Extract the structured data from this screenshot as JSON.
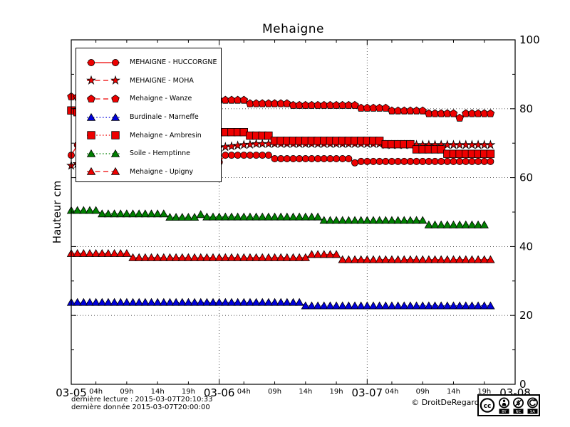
{
  "title": "Mehaigne",
  "ylabel": "Hauteur cm",
  "footer": {
    "last_reading": "dernière lecture : 2015-03-07T20:10:33",
    "last_data": "dernière donnée  2015-03-07T20:00:00",
    "copyright": "© DroitDeRegard.be",
    "cc_logo": "cc",
    "cc_parts": [
      "BY",
      "NC",
      "SA"
    ]
  },
  "chart_data": {
    "type": "line",
    "title": "Mehaigne",
    "xlabel": "",
    "ylabel": "Hauteur cm",
    "ylim": [
      0,
      100
    ],
    "x_unit": "hours since 2015-03-05T00:00",
    "x_range_hours": 72,
    "grid": {
      "y_values": [
        20,
        40,
        60,
        80
      ],
      "x_hours": [
        24,
        48
      ]
    },
    "axes": {
      "x_major": [
        {
          "hour": 0,
          "label": "03-05"
        },
        {
          "hour": 24,
          "label": "03-06"
        },
        {
          "hour": 48,
          "label": "03-07"
        },
        {
          "hour": 72,
          "label": "03-08"
        }
      ],
      "x_minor": [
        {
          "hour": 4,
          "label": "04h"
        },
        {
          "hour": 9,
          "label": "09h"
        },
        {
          "hour": 14,
          "label": "14h"
        },
        {
          "hour": 19,
          "label": "19h"
        },
        {
          "hour": 28,
          "label": "04h"
        },
        {
          "hour": 33,
          "label": "09h"
        },
        {
          "hour": 38,
          "label": "14h"
        },
        {
          "hour": 43,
          "label": "19h"
        },
        {
          "hour": 52,
          "label": "04h"
        },
        {
          "hour": 57,
          "label": "09h"
        },
        {
          "hour": 62,
          "label": "14h"
        },
        {
          "hour": 67,
          "label": "19h"
        }
      ],
      "y_major": [
        {
          "value": 0,
          "label": "0"
        },
        {
          "value": 20,
          "label": "20"
        },
        {
          "value": 40,
          "label": "40"
        },
        {
          "value": 60,
          "label": "60"
        },
        {
          "value": 80,
          "label": "80"
        },
        {
          "value": 100,
          "label": "100"
        }
      ],
      "y_minor": [
        10,
        30,
        50,
        70,
        90
      ]
    },
    "series": [
      {
        "name": "MEHAIGNE - HUCCORGNE",
        "color": "#ee0000",
        "marker": "circle",
        "line": "solid",
        "start_hour": 0,
        "values": [
          66.5,
          69.5,
          69.5,
          69,
          69,
          68.5,
          68.5,
          68,
          68,
          67.5,
          67.5,
          67,
          67,
          66.5,
          66.5,
          66,
          66,
          65.5,
          65.5,
          65,
          65,
          64.8,
          64.6,
          64.5,
          64.5,
          66.5,
          66.5,
          66.5,
          66.5,
          66.5,
          66.5,
          66.5,
          66.5,
          65.5,
          65.5,
          65.5,
          65.5,
          65.5,
          65.5,
          65.5,
          65.5,
          65.5,
          65.5,
          65.5,
          65.5,
          65.5,
          64.3,
          64.7,
          64.7,
          64.7,
          64.7,
          64.7,
          64.7,
          64.7,
          64.7,
          64.7,
          64.7,
          64.7,
          64.7,
          64.7,
          64.7,
          64.7,
          64.7,
          64.7,
          64.7,
          64.7,
          64.7,
          64.7,
          64.7
        ]
      },
      {
        "name": "MEHAIGNE - MOHA",
        "color": "#ee0000",
        "marker": "star",
        "line": "dashed",
        "start_hour": 0,
        "values": [
          63.5,
          64,
          64.4,
          64.8,
          65.2,
          65.5,
          65.8,
          66.1,
          66.4,
          66.6,
          66.8,
          67,
          67.2,
          67.4,
          67.5,
          67.7,
          67.8,
          67.9,
          68,
          68.1,
          68.2,
          68.3,
          68.4,
          68.5,
          68.7,
          68.9,
          69.1,
          69.3,
          69.5,
          69.6,
          69.8,
          69.8,
          69.8,
          69.8,
          69.8,
          69.8,
          69.8,
          69.8,
          69.8,
          69.8,
          69.8,
          69.8,
          69.8,
          69.8,
          69.8,
          69.8,
          69.8,
          69.8,
          69.8,
          69.8,
          69.8,
          69.5,
          69.5,
          69.5,
          69.5,
          69.5,
          69.5,
          69.5,
          69.5,
          69.5,
          69.5,
          69.5,
          69.5,
          69.5,
          69.5,
          69.5,
          69.5,
          69.5,
          69.5
        ]
      },
      {
        "name": "Mehaigne - Wanze",
        "color": "#ee0000",
        "marker": "pentagon",
        "line": "dashed",
        "start_hour": 0,
        "values": [
          83.5,
          83.4,
          83.3,
          83.3,
          83.2,
          83.2,
          83.1,
          83.1,
          83,
          83,
          83,
          83,
          83,
          83,
          83,
          83,
          83,
          83,
          83,
          83,
          83,
          83,
          83,
          83,
          82.5,
          82.5,
          82.5,
          82.5,
          82.5,
          81.5,
          81.5,
          81.5,
          81.5,
          81.5,
          81.5,
          81.5,
          81,
          81,
          81,
          81,
          81,
          81,
          81,
          81,
          81,
          81,
          81,
          80.2,
          80.2,
          80.2,
          80.2,
          80.2,
          79.4,
          79.4,
          79.4,
          79.4,
          79.4,
          79.4,
          78.6,
          78.6,
          78.6,
          78.6,
          78.6,
          77.3,
          78.6,
          78.6,
          78.6,
          78.6,
          78.6
        ]
      },
      {
        "name": "Burdinale - Marneffe",
        "color": "#0000dd",
        "marker": "triangle",
        "line": "dotted",
        "start_hour": 0,
        "values": [
          23.8,
          23.8,
          23.8,
          23.8,
          23.8,
          23.8,
          23.8,
          23.8,
          23.8,
          23.8,
          23.8,
          23.8,
          23.8,
          23.8,
          23.8,
          23.8,
          23.8,
          23.8,
          23.8,
          23.8,
          23.8,
          23.8,
          23.8,
          23.8,
          23.8,
          23.8,
          23.8,
          23.8,
          23.8,
          23.8,
          23.8,
          23.8,
          23.8,
          23.8,
          23.8,
          23.8,
          23.8,
          23.8,
          22.8,
          22.8,
          22.8,
          22.8,
          22.8,
          22.8,
          22.8,
          22.8,
          22.8,
          22.8,
          22.8,
          22.8,
          22.8,
          22.8,
          22.8,
          22.8,
          22.8,
          22.8,
          22.8,
          22.8,
          22.8,
          22.8,
          22.8,
          22.8,
          22.8,
          22.8,
          22.8,
          22.8,
          22.8,
          22.8,
          22.8
        ]
      },
      {
        "name": "Mehaigne - Ambresin",
        "color": "#ee0000",
        "marker": "square",
        "line": "dotted",
        "start_hour": 0,
        "values": [
          79.5,
          79,
          78.5,
          78,
          77.5,
          77,
          76.5,
          76,
          75.6,
          75.2,
          75,
          74.8,
          74.6,
          74.4,
          74.2,
          74,
          73.9,
          73.8,
          73.7,
          73.6,
          73.5,
          73.4,
          73.3,
          73.3,
          73.2,
          73.2,
          73.2,
          73.2,
          73.2,
          72.2,
          72.2,
          72.2,
          72.2,
          70.7,
          70.7,
          70.7,
          70.7,
          70.7,
          70.7,
          70.7,
          70.7,
          70.7,
          70.7,
          70.7,
          70.7,
          70.7,
          70.7,
          70.7,
          70.7,
          70.7,
          70.7,
          69.7,
          69.7,
          69.7,
          69.7,
          69.7,
          68.2,
          68.2,
          68.2,
          68.2,
          68.2,
          66.9,
          66.9,
          66.9,
          66.9,
          66.9,
          66.9,
          66.9,
          66.9
        ]
      },
      {
        "name": "Soile - Hemptinne",
        "color": "#008000",
        "marker": "triangle",
        "line": "dotted",
        "start_hour": 0,
        "values": [
          50.5,
          50.5,
          50.5,
          50.5,
          50.5,
          49.5,
          49.5,
          49.5,
          49.5,
          49.5,
          49.5,
          49.5,
          49.5,
          49.5,
          49.5,
          49.5,
          48.5,
          48.5,
          48.5,
          48.5,
          48.5,
          49.3,
          48.6,
          48.6,
          48.6,
          48.6,
          48.6,
          48.6,
          48.6,
          48.6,
          48.6,
          48.6,
          48.6,
          48.6,
          48.6,
          48.6,
          48.6,
          48.6,
          48.6,
          48.6,
          48.6,
          47.6,
          47.6,
          47.6,
          47.6,
          47.6,
          47.6,
          47.6,
          47.6,
          47.6,
          47.6,
          47.6,
          47.6,
          47.6,
          47.6,
          47.6,
          47.6,
          47.6,
          46.3,
          46.3,
          46.3,
          46.3,
          46.3,
          46.3,
          46.3,
          46.3,
          46.3,
          46.3
        ]
      },
      {
        "name": "Mehaigne - Upigny",
        "color": "#ee0000",
        "marker": "triangle",
        "line": "dashed",
        "start_hour": 0,
        "values": [
          38,
          38,
          38,
          38,
          38,
          38,
          38,
          38,
          38,
          38,
          36.8,
          36.8,
          36.8,
          36.8,
          36.8,
          36.8,
          36.8,
          36.8,
          36.8,
          36.8,
          36.8,
          36.8,
          36.8,
          36.8,
          36.8,
          36.8,
          36.8,
          36.8,
          36.8,
          36.8,
          36.8,
          36.8,
          36.8,
          36.8,
          36.8,
          36.8,
          36.8,
          36.8,
          36.8,
          37.7,
          37.7,
          37.7,
          37.7,
          37.7,
          36.2,
          36.2,
          36.2,
          36.2,
          36.2,
          36.2,
          36.2,
          36.2,
          36.2,
          36.2,
          36.2,
          36.2,
          36.2,
          36.2,
          36.2,
          36.2,
          36.2,
          36.2,
          36.2,
          36.2,
          36.2,
          36.2,
          36.2,
          36.2,
          36.2
        ]
      }
    ],
    "legend_position": "upper left"
  }
}
